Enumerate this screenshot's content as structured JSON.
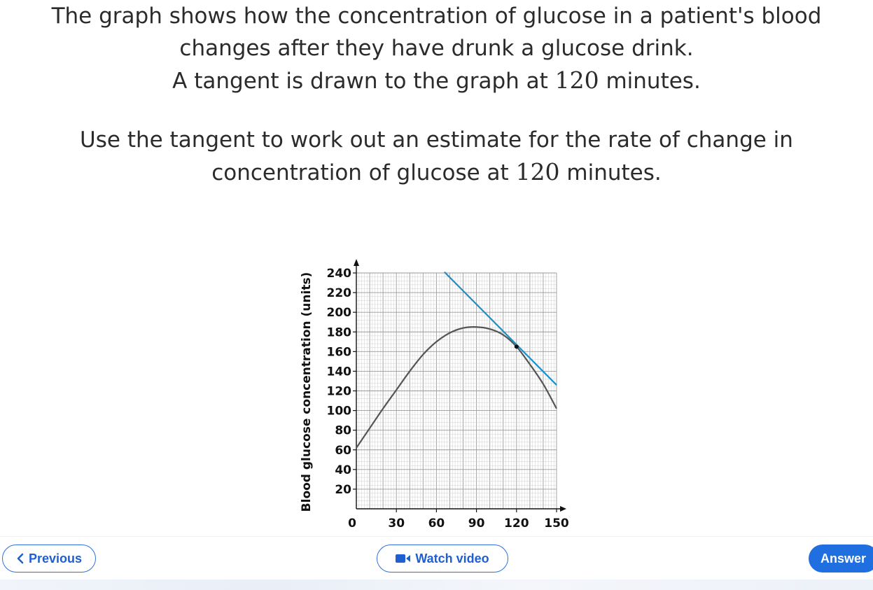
{
  "question": {
    "line1": "The graph shows how the concentration of glucose in a patient's blood",
    "line2": "changes after they have drunk a glucose drink.",
    "line3_pre": "A tangent is drawn to the graph at ",
    "line3_num": "120",
    "line3_post": " minutes.",
    "line4": "Use the tangent to work out an estimate for the rate of change in",
    "line5_pre": "concentration of glucose at ",
    "line5_num": "120",
    "line5_post": " minutes."
  },
  "chart_data": {
    "type": "line",
    "title": "",
    "xlabel": "",
    "ylabel": "Blood glucose concentration (units)",
    "xlim": [
      0,
      150
    ],
    "ylim": [
      0,
      240
    ],
    "x_ticks": [
      30,
      60,
      90,
      120,
      150
    ],
    "y_ticks": [
      20,
      40,
      60,
      80,
      100,
      120,
      140,
      160,
      180,
      200,
      220,
      240
    ],
    "origin_label": "0",
    "grid": true,
    "series": [
      {
        "kind": "curve",
        "color": "#555555",
        "x": [
          0,
          10,
          20,
          30,
          40,
          50,
          60,
          70,
          80,
          90,
          100,
          110,
          120,
          130,
          140,
          150
        ],
        "y": [
          62,
          82,
          102,
          121,
          140,
          157,
          170,
          179,
          184,
          185,
          183,
          177,
          165,
          147,
          127,
          102
        ]
      },
      {
        "kind": "tangent",
        "color": "#1b8fc9",
        "x": [
          66,
          150
        ],
        "y": [
          241,
          126
        ]
      }
    ],
    "point": {
      "x": 120,
      "y": 165
    }
  },
  "buttons": {
    "previous": "Previous",
    "watch_video": "Watch video",
    "answer": "Answer"
  },
  "icons": {
    "previous": "chevron-left-icon",
    "video": "video-camera-icon"
  },
  "colors": {
    "primary": "#1f6fe0",
    "tangent": "#1b8fc9",
    "curve": "#555555"
  }
}
